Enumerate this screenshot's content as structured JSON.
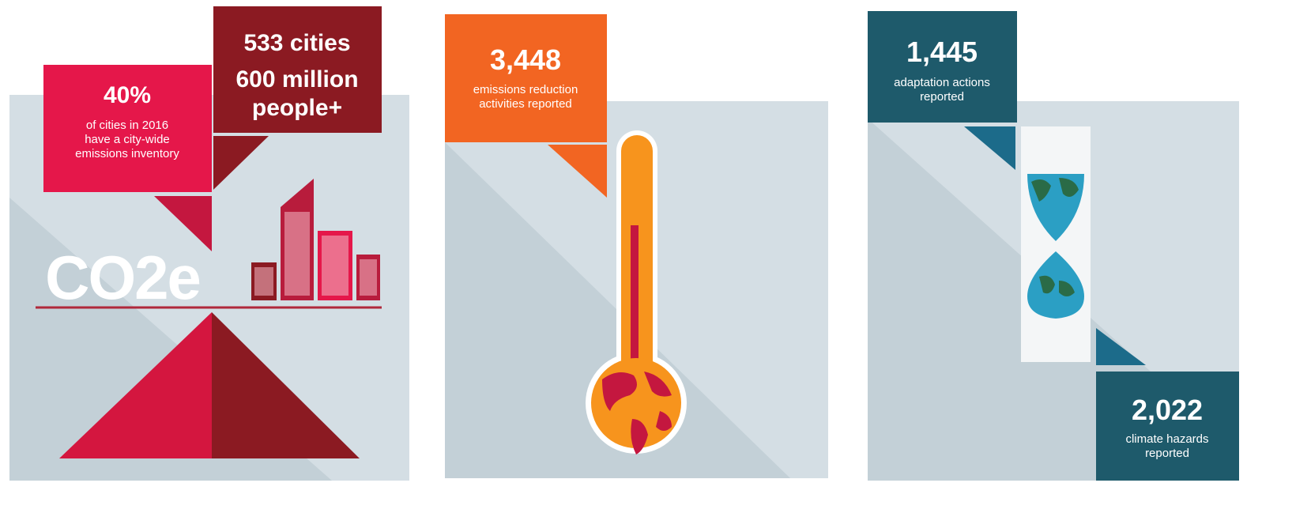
{
  "panels": [
    {
      "stat": {
        "value": "40%",
        "lines": [
          "of cities in 2016",
          "have a city-wide",
          "emissions inventory"
        ]
      },
      "reach": {
        "lines": [
          "533 cities",
          "600 million",
          "people+"
        ]
      },
      "logo": "CO2e"
    },
    {
      "stat": {
        "value": "3,448",
        "lines": [
          "emissions reduction",
          "activities reported"
        ]
      }
    },
    {
      "stat": {
        "value": "1,445",
        "lines": [
          "adaptation actions",
          "reported"
        ]
      },
      "hazards": {
        "value": "2,022",
        "lines": [
          "climate hazards",
          "reported"
        ]
      }
    }
  ]
}
